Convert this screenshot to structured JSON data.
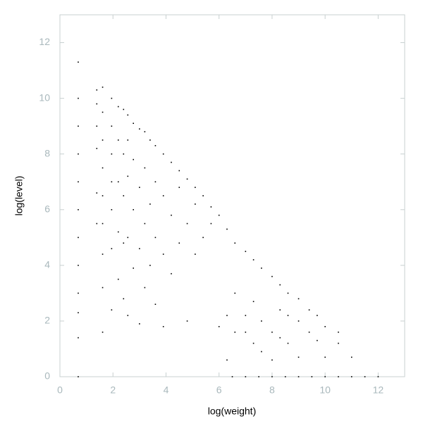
{
  "chart_data": {
    "type": "scatter",
    "xlabel": "log(weight)",
    "ylabel": "log(level)",
    "color": "#000000",
    "xlim": [
      0,
      13
    ],
    "ylim": [
      0,
      13
    ],
    "xticks": [
      0,
      2,
      4,
      6,
      8,
      10,
      12
    ],
    "yticks": [
      0,
      2,
      4,
      6,
      8,
      10,
      12
    ],
    "x": [
      0.69,
      0.69,
      0.69,
      0.69,
      0.69,
      0.69,
      0.69,
      0.69,
      0.69,
      0.69,
      0.69,
      0.69,
      1.39,
      1.39,
      1.39,
      1.39,
      1.39,
      1.39,
      1.61,
      1.61,
      1.61,
      1.61,
      1.61,
      1.61,
      1.61,
      1.61,
      1.61,
      1.95,
      1.95,
      1.95,
      1.95,
      1.95,
      1.95,
      1.95,
      2.2,
      2.2,
      2.2,
      2.2,
      2.2,
      2.4,
      2.4,
      2.4,
      2.4,
      2.4,
      2.56,
      2.56,
      2.56,
      2.56,
      2.56,
      2.77,
      2.77,
      2.77,
      2.77,
      3.0,
      3.0,
      3.0,
      3.0,
      3.2,
      3.2,
      3.2,
      3.2,
      3.4,
      3.4,
      3.4,
      3.6,
      3.6,
      3.6,
      3.6,
      3.9,
      3.9,
      3.9,
      3.9,
      4.2,
      4.2,
      4.2,
      4.5,
      4.5,
      4.5,
      4.8,
      4.8,
      4.8,
      5.1,
      5.1,
      5.1,
      5.4,
      5.4,
      5.7,
      5.7,
      6.0,
      6.0,
      6.3,
      6.3,
      6.3,
      6.6,
      6.6,
      6.6,
      7.0,
      7.0,
      7.0,
      7.3,
      7.3,
      7.3,
      7.6,
      7.6,
      7.6,
      8.0,
      8.0,
      8.0,
      8.3,
      8.3,
      8.3,
      8.6,
      8.6,
      8.6,
      9.0,
      9.0,
      9.0,
      9.4,
      9.4,
      9.7,
      9.7,
      10.0,
      10.0,
      10.5,
      10.5,
      11.0,
      6.5,
      7.0,
      7.5,
      8.0,
      8.5,
      9.0,
      9.5,
      10.0,
      10.5,
      11.0,
      11.5,
      12.0
    ],
    "values": [
      0,
      1.4,
      2.3,
      3.0,
      4.0,
      5.0,
      6.0,
      7.0,
      8.0,
      9.0,
      10.0,
      11.3,
      5.5,
      6.6,
      8.2,
      9.0,
      9.8,
      10.3,
      1.6,
      3.2,
      4.4,
      5.5,
      6.5,
      7.5,
      8.5,
      9.5,
      10.4,
      2.4,
      4.6,
      6.0,
      7.0,
      8.0,
      9.0,
      10.0,
      3.5,
      5.2,
      7.0,
      8.5,
      9.7,
      2.8,
      4.8,
      6.5,
      8.0,
      9.6,
      2.2,
      5.0,
      7.2,
      8.5,
      9.4,
      3.9,
      6.0,
      7.8,
      9.1,
      1.9,
      4.6,
      6.8,
      8.9,
      3.2,
      5.5,
      7.5,
      8.8,
      4.0,
      6.2,
      8.5,
      2.6,
      5.0,
      7.0,
      8.3,
      1.8,
      4.4,
      6.5,
      8.0,
      3.7,
      5.8,
      7.7,
      4.8,
      6.8,
      7.4,
      2.0,
      5.5,
      7.1,
      4.4,
      6.2,
      6.8,
      5.0,
      6.5,
      5.5,
      6.1,
      5.8,
      1.8,
      5.3,
      2.2,
      0.6,
      4.8,
      3.0,
      1.6,
      4.5,
      1.6,
      2.2,
      4.2,
      2.7,
      1.2,
      3.9,
      2.0,
      0.9,
      3.6,
      1.6,
      0.6,
      3.3,
      2.4,
      1.4,
      3.0,
      2.2,
      1.2,
      2.8,
      2.0,
      0.7,
      2.4,
      1.6,
      2.2,
      1.3,
      1.8,
      0.7,
      1.6,
      1.2,
      0.7,
      0,
      0,
      0,
      0,
      0,
      0,
      0,
      0,
      0,
      0,
      0,
      0
    ]
  }
}
